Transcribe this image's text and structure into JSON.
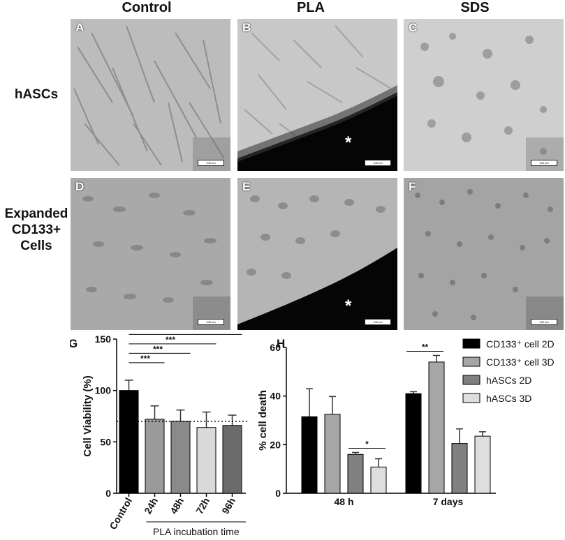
{
  "figure": {
    "columns": [
      "Control",
      "PLA",
      "SDS"
    ],
    "rows": [
      "hASCs",
      "Expanded\nCD133+\nCells"
    ],
    "panels": [
      {
        "letter": "A",
        "scale": "100 um"
      },
      {
        "letter": "B",
        "scale": "100 um",
        "marker": "*"
      },
      {
        "letter": "C",
        "scale": "100 um"
      },
      {
        "letter": "D",
        "scale": "100 um"
      },
      {
        "letter": "E",
        "scale": "100 um",
        "marker": "*"
      },
      {
        "letter": "F",
        "scale": "100 um"
      }
    ]
  },
  "chart_data": [
    {
      "panel": "G",
      "type": "bar",
      "categories": [
        "Control",
        "24h",
        "48h",
        "72h",
        "96h"
      ],
      "values": [
        100,
        72,
        70,
        64,
        66
      ],
      "errors": [
        10,
        13,
        11,
        15,
        10
      ],
      "colors": [
        "#000000",
        "#9a9a9a",
        "#8a8a8a",
        "#d9d9d9",
        "#6b6b6b"
      ],
      "ylabel": "Cell  Viability (%)",
      "xgroup_label": "PLA incubation time",
      "ylim": [
        0,
        150
      ],
      "yticks": [
        0,
        50,
        100,
        150
      ],
      "reference_line": 70,
      "significance": [
        {
          "from": "Control",
          "to": "24h",
          "label": "***"
        },
        {
          "from": "Control",
          "to": "48h",
          "label": "***"
        },
        {
          "from": "Control",
          "to": "72h",
          "label": "***"
        },
        {
          "from": "Control",
          "to": "96h",
          "label": "***"
        }
      ]
    },
    {
      "panel": "H",
      "type": "bar",
      "categories": [
        "48 h",
        "7 days"
      ],
      "series": [
        {
          "name": "CD133⁺ cell 2D",
          "color": "#000000",
          "values": [
            31.5,
            41
          ],
          "errors": [
            11.5,
            0.8
          ]
        },
        {
          "name": "CD133⁺ cell 3D",
          "color": "#a6a6a6",
          "values": [
            32.5,
            54
          ],
          "errors": [
            7.3,
            2.7
          ]
        },
        {
          "name": "hASCs 2D",
          "color": "#808080",
          "values": [
            16,
            20.5
          ],
          "errors": [
            0.8,
            6
          ]
        },
        {
          "name": "hASCs 3D",
          "color": "#dedede",
          "values": [
            10.8,
            23.5
          ],
          "errors": [
            3.4,
            1.8
          ]
        }
      ],
      "ylabel": "% cell death",
      "ylim": [
        0,
        60
      ],
      "yticks": [
        0,
        20,
        40,
        60
      ],
      "legend_position": "right",
      "significance": [
        {
          "group": "48 h",
          "from": "hASCs 2D",
          "to": "hASCs 3D",
          "label": "*"
        },
        {
          "group": "7 days",
          "from": "CD133⁺ cell 2D",
          "to": "CD133⁺ cell 3D",
          "label": "**"
        }
      ]
    }
  ]
}
